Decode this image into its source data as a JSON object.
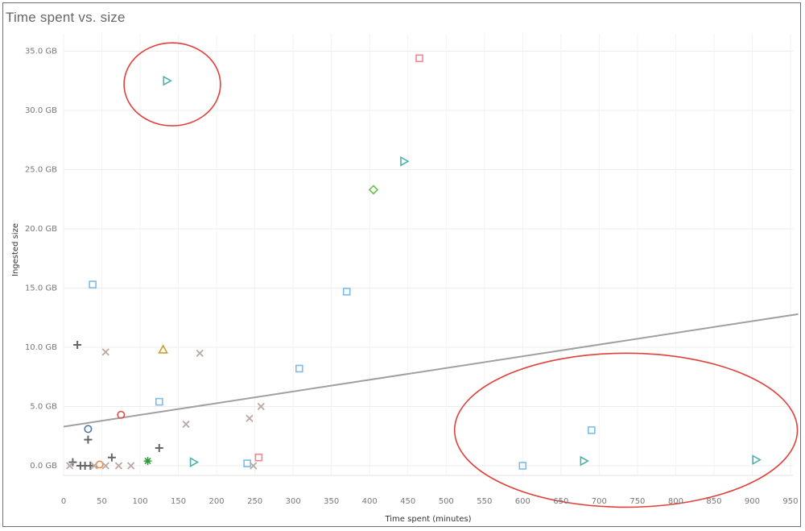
{
  "chart_data": {
    "type": "scatter",
    "title": "Time spent vs. size",
    "xlabel": "Time spent (minutes)",
    "ylabel": "Ingested size",
    "xlim": [
      0,
      960
    ],
    "ylim": [
      -0.5,
      36
    ],
    "x_ticks": [
      0,
      50,
      100,
      150,
      200,
      250,
      300,
      350,
      400,
      450,
      500,
      550,
      600,
      650,
      700,
      750,
      800,
      850,
      900,
      950
    ],
    "y_ticks": [
      0,
      5,
      10,
      15,
      20,
      25,
      30,
      35
    ],
    "y_tick_labels": [
      "0.0 GB",
      "5.0 GB",
      "10.0 GB",
      "15.0 GB",
      "20.0 GB",
      "25.0 GB",
      "30.0 GB",
      "35.0 GB"
    ],
    "grid": true,
    "trend_line": {
      "x": [
        0,
        960
      ],
      "y": [
        3.3,
        12.8
      ],
      "color": "#a0a0a0"
    },
    "annotations": [
      {
        "type": "ellipse",
        "color": "#e0403a",
        "cx": 142,
        "cy": 32.2,
        "rx": 63,
        "ry": 3.5
      },
      {
        "type": "ellipse",
        "color": "#e0403a",
        "cx": 735,
        "cy": 3.0,
        "rx": 224,
        "ry": 6.5
      }
    ],
    "points": [
      {
        "x": 135,
        "y": 32.5,
        "marker": "triangle-right",
        "color": "#4fb3a8"
      },
      {
        "x": 445,
        "y": 25.7,
        "marker": "triangle-right",
        "color": "#4fb3a8"
      },
      {
        "x": 170,
        "y": 0.3,
        "marker": "triangle-right",
        "color": "#4fb3a8"
      },
      {
        "x": 680,
        "y": 0.4,
        "marker": "triangle-right",
        "color": "#4fb3a8"
      },
      {
        "x": 905,
        "y": 0.5,
        "marker": "triangle-right",
        "color": "#4fb3a8"
      },
      {
        "x": 465,
        "y": 34.4,
        "marker": "square",
        "color": "#f2848c"
      },
      {
        "x": 255,
        "y": 0.7,
        "marker": "square",
        "color": "#f2848c"
      },
      {
        "x": 405,
        "y": 23.3,
        "marker": "diamond",
        "color": "#6cbf4a"
      },
      {
        "x": 38,
        "y": 15.3,
        "marker": "square",
        "color": "#7cbde8"
      },
      {
        "x": 370,
        "y": 14.7,
        "marker": "square",
        "color": "#7cbde8"
      },
      {
        "x": 308,
        "y": 8.2,
        "marker": "square",
        "color": "#7cbde8"
      },
      {
        "x": 125,
        "y": 5.4,
        "marker": "square",
        "color": "#7cbde8"
      },
      {
        "x": 240,
        "y": 0.2,
        "marker": "square",
        "color": "#7cbde8"
      },
      {
        "x": 690,
        "y": 3.0,
        "marker": "square",
        "color": "#7cbde8"
      },
      {
        "x": 600,
        "y": 0.0,
        "marker": "square",
        "color": "#7cbde8"
      },
      {
        "x": 130,
        "y": 9.8,
        "marker": "triangle",
        "color": "#c9a030"
      },
      {
        "x": 75,
        "y": 4.3,
        "marker": "circle",
        "color": "#e0504a"
      },
      {
        "x": 32,
        "y": 3.1,
        "marker": "circle",
        "color": "#4a78a8"
      },
      {
        "x": 47,
        "y": 0.1,
        "marker": "circle",
        "color": "#f08a3c"
      },
      {
        "x": 18,
        "y": 10.2,
        "marker": "plus",
        "color": "#666666"
      },
      {
        "x": 32,
        "y": 2.2,
        "marker": "plus",
        "color": "#666666"
      },
      {
        "x": 125,
        "y": 1.5,
        "marker": "plus",
        "color": "#666666"
      },
      {
        "x": 63,
        "y": 0.7,
        "marker": "plus",
        "color": "#666666"
      },
      {
        "x": 12,
        "y": 0.3,
        "marker": "plus",
        "color": "#666666"
      },
      {
        "x": 22,
        "y": 0.0,
        "marker": "plus",
        "color": "#666666"
      },
      {
        "x": 28,
        "y": 0.0,
        "marker": "plus",
        "color": "#666666"
      },
      {
        "x": 35,
        "y": 0.0,
        "marker": "plus",
        "color": "#666666"
      },
      {
        "x": 55,
        "y": 9.6,
        "marker": "x",
        "color": "#b8a8a4"
      },
      {
        "x": 178,
        "y": 9.5,
        "marker": "x",
        "color": "#b8a8a4"
      },
      {
        "x": 258,
        "y": 5.0,
        "marker": "x",
        "color": "#b8a8a4"
      },
      {
        "x": 243,
        "y": 4.0,
        "marker": "x",
        "color": "#b8a8a4"
      },
      {
        "x": 160,
        "y": 3.5,
        "marker": "x",
        "color": "#b8a8a4"
      },
      {
        "x": 8,
        "y": 0.0,
        "marker": "x",
        "color": "#b8a8a4"
      },
      {
        "x": 40,
        "y": 0.0,
        "marker": "x",
        "color": "#b8a8a4"
      },
      {
        "x": 55,
        "y": 0.0,
        "marker": "x",
        "color": "#b8a8a4"
      },
      {
        "x": 72,
        "y": 0.0,
        "marker": "x",
        "color": "#b8a8a4"
      },
      {
        "x": 88,
        "y": 0.0,
        "marker": "x",
        "color": "#b8a8a4"
      },
      {
        "x": 248,
        "y": 0.0,
        "marker": "x",
        "color": "#b8a8a4"
      },
      {
        "x": 110,
        "y": 0.4,
        "marker": "asterisk",
        "color": "#2e9a3a"
      }
    ]
  }
}
